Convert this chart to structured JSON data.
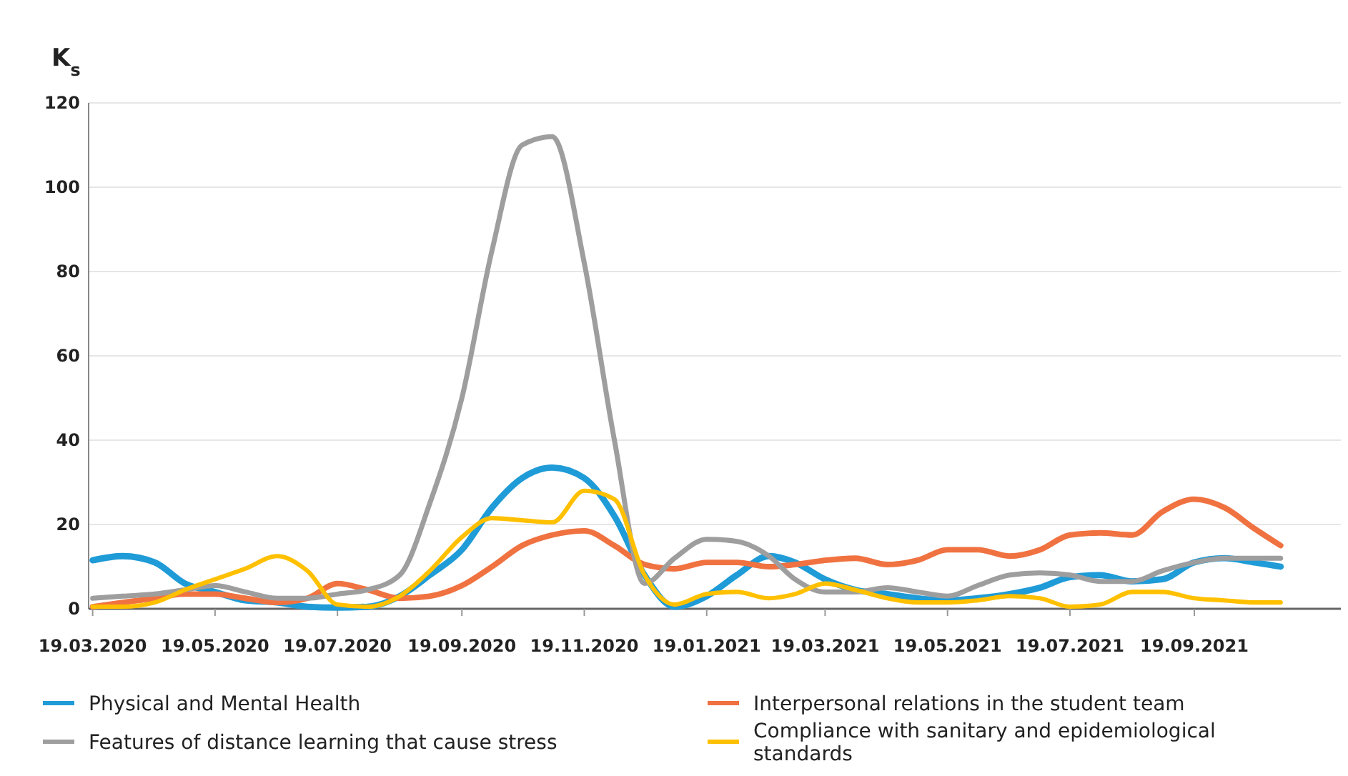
{
  "chart_data": {
    "type": "line",
    "ylabel": "K$_{s}$",
    "x": [
      "2020-03-19",
      "2020-04-03",
      "2020-04-19",
      "2020-05-04",
      "2020-05-19",
      "2020-06-03",
      "2020-06-19",
      "2020-07-04",
      "2020-07-19",
      "2020-08-03",
      "2020-08-19",
      "2020-09-03",
      "2020-09-19",
      "2020-10-04",
      "2020-10-19",
      "2020-11-03",
      "2020-11-19",
      "2020-12-04",
      "2020-12-19",
      "2021-01-03",
      "2021-01-19",
      "2021-02-03",
      "2021-02-19",
      "2021-03-04",
      "2021-03-19",
      "2021-04-03",
      "2021-04-19",
      "2021-05-04",
      "2021-05-19",
      "2021-06-03",
      "2021-06-19",
      "2021-07-04",
      "2021-07-19",
      "2021-08-03",
      "2021-08-19",
      "2021-09-03",
      "2021-09-19",
      "2021-10-04",
      "2021-10-19",
      "2021-11-01"
    ],
    "series": [
      {
        "name": "Physical and Mental Health",
        "color": "#1f9bd7",
        "values": [
          11.5,
          12.5,
          11,
          6,
          4,
          2,
          1.5,
          0.5,
          0.3,
          0.5,
          3,
          8,
          14,
          24,
          31,
          33.5,
          31,
          22,
          8,
          0.5,
          3,
          8,
          12.5,
          11,
          7,
          4.5,
          3.5,
          2.5,
          2,
          2.5,
          3.5,
          5,
          7.5,
          8,
          6.5,
          7,
          11,
          12,
          11,
          10
        ]
      },
      {
        "name": "Interpersonal relations in the student team",
        "color": "#f07241",
        "values": [
          0.5,
          1.5,
          2.5,
          3.5,
          3.5,
          2.5,
          1.5,
          2.5,
          6,
          4.5,
          2.5,
          3,
          5.5,
          10,
          15,
          17.5,
          18.5,
          15,
          10.5,
          9.5,
          11,
          11,
          10,
          10.5,
          11.5,
          12,
          10.5,
          11.5,
          14,
          14,
          12.5,
          14,
          17.5,
          18,
          17.5,
          23,
          26,
          24,
          19,
          15
        ]
      },
      {
        "name": "Features of distance learning that cause stress",
        "color": "#9e9e9e",
        "values": [
          2.5,
          3,
          3.5,
          4.5,
          5.5,
          4,
          2.5,
          2.5,
          3.5,
          4.5,
          8,
          25,
          50,
          85,
          110,
          112,
          82,
          40,
          6,
          12,
          16.5,
          16,
          12.5,
          7,
          4,
          4,
          5,
          4,
          3,
          5.5,
          8,
          8.5,
          8,
          6.5,
          6.5,
          9,
          11,
          12,
          12,
          12
        ]
      },
      {
        "name": "Compliance with sanitary and epidemiological standards",
        "color": "#ffc000",
        "values": [
          0.5,
          0.5,
          1.5,
          4.5,
          7,
          9.5,
          12.5,
          9,
          1,
          0.5,
          3,
          9,
          17,
          21.5,
          21,
          20.5,
          28,
          26,
          8,
          1,
          3.5,
          4,
          2.5,
          3.5,
          6,
          4.5,
          2.5,
          1.5,
          1.5,
          2,
          3,
          2.5,
          0.5,
          1,
          4,
          4,
          2.5,
          2,
          1.5,
          1.5
        ]
      }
    ],
    "xlim": [
      "2020-03-17",
      "2021-12-01"
    ],
    "xticks": [
      {
        "value": "2020-03-19",
        "label": "19.03.2020"
      },
      {
        "value": "2020-05-19",
        "label": "19.05.2020"
      },
      {
        "value": "2020-07-19",
        "label": "19.07.2020"
      },
      {
        "value": "2020-09-19",
        "label": "19.09.2020"
      },
      {
        "value": "2020-11-19",
        "label": "19.11.2020"
      },
      {
        "value": "2021-01-19",
        "label": "19.01.2021"
      },
      {
        "value": "2021-03-19",
        "label": "19.03.2021"
      },
      {
        "value": "2021-05-19",
        "label": "19.05.2021"
      },
      {
        "value": "2021-07-19",
        "label": "19.07.2021"
      },
      {
        "value": "2021-09-19",
        "label": "19.09.2021"
      }
    ],
    "ylim": [
      0,
      120
    ],
    "yticks": [
      0,
      20,
      40,
      60,
      80,
      100,
      120
    ],
    "grid": "y",
    "legend": "bottom",
    "marker": "none",
    "line_style": "solid"
  }
}
